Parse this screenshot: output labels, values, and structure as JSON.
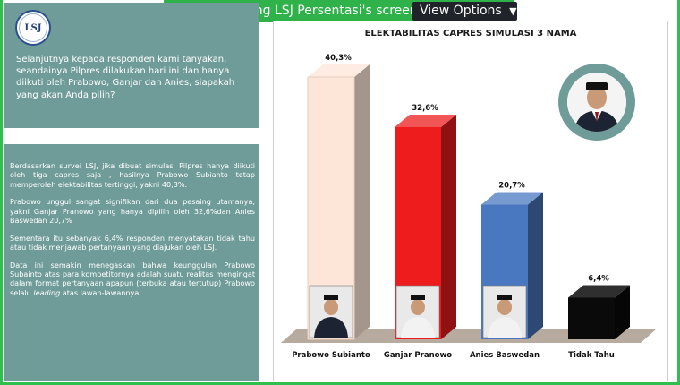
{
  "share_banner": {
    "message": "You are viewing LSJ Persentasi's screen",
    "view_options_label": "View Options"
  },
  "logo_text": "LSJ",
  "question": "Selanjutnya kepada responden kami tanyakan, seandainya Pilpres dilakukan hari ini dan hanya diikuti oleh Prabowo, Ganjar dan Anies, siapakah yang akan Anda pilih?",
  "summary": {
    "p1": "Berdasarkan survei LSJ, jika dibuat simulasi Pilpres hanya diikuti oleh tiga capres saja , hasilnya Prabowo Subianto tetap memperoleh elektabilitas tertinggi, yakni 40,3%.",
    "p2": "Prabowo unggul sangat signifikan dari dua pesaing utamanya, yakni Ganjar Pranowo yang hanya dipilih oleh 32,6%dan Anies Baswedan 20,7%",
    "p3": "Sementara itu sebanyak 6,4% responden menyatakan tidak tahu atau tidak menjawab pertanyaan yang diajukan oleh LSJ.",
    "p4_before": "Data ini semakin menegaskan bahwa keunggulan Prabowo Subainto atas para kompetitornya adalah suatu realitas mengingat dalam format pertanyaan apapun (terbuka atau tertutup) Prabowo selalu ",
    "p4_italic": "leading",
    "p4_after": " atas lawan-lawannya."
  },
  "colors": {
    "panel": "#6f9c98",
    "banner": "#2fb24a",
    "floor": "#b7aba0"
  },
  "chart_data": {
    "type": "bar",
    "title": "ELEKTABILITAS CAPRES SIMULASI 3 NAMA",
    "categories": [
      "Prabowo Subianto",
      "Ganjar Pranowo",
      "Anies Baswedan",
      "Tidak Tahu"
    ],
    "values": [
      40.3,
      32.6,
      20.7,
      6.4
    ],
    "value_labels": [
      "40,3%",
      "32,6%",
      "20,7%",
      "6,4%"
    ],
    "colors": [
      "#fde6d8",
      "#ee1c1c",
      "#4a78c0",
      "#0a0a0a"
    ],
    "bar_style": "3d",
    "xlabel": "",
    "ylabel": "",
    "grid": false
  }
}
